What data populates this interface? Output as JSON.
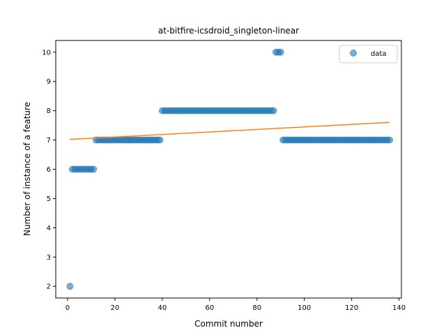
{
  "chart_data": {
    "type": "scatter",
    "title": "at-bitfire-icsdroid_singleton-linear",
    "xlabel": "Commit number",
    "ylabel": "Number of instance of a feature",
    "xlim": [
      -5,
      141
    ],
    "ylim": [
      1.6,
      10.4
    ],
    "xticks": [
      0,
      20,
      40,
      60,
      80,
      100,
      120,
      140
    ],
    "yticks": [
      2,
      3,
      4,
      5,
      6,
      7,
      8,
      9,
      10
    ],
    "grid": false,
    "legend_position": "top-right",
    "series": [
      {
        "name": "data",
        "kind": "scatter",
        "color": "#1f77b4",
        "segments": [
          {
            "x_from": 1,
            "x_to": 1,
            "y": 2
          },
          {
            "x_from": 2,
            "x_to": 11,
            "y": 6
          },
          {
            "x_from": 12,
            "x_to": 39,
            "y": 7
          },
          {
            "x_from": 40,
            "x_to": 87,
            "y": 8
          },
          {
            "x_from": 88,
            "x_to": 90,
            "y": 10
          },
          {
            "x_from": 91,
            "x_to": 136,
            "y": 7
          }
        ]
      },
      {
        "kind": "line",
        "color": "#ff7f0e",
        "x": [
          1,
          136
        ],
        "y": [
          7.02,
          7.6
        ]
      }
    ]
  }
}
